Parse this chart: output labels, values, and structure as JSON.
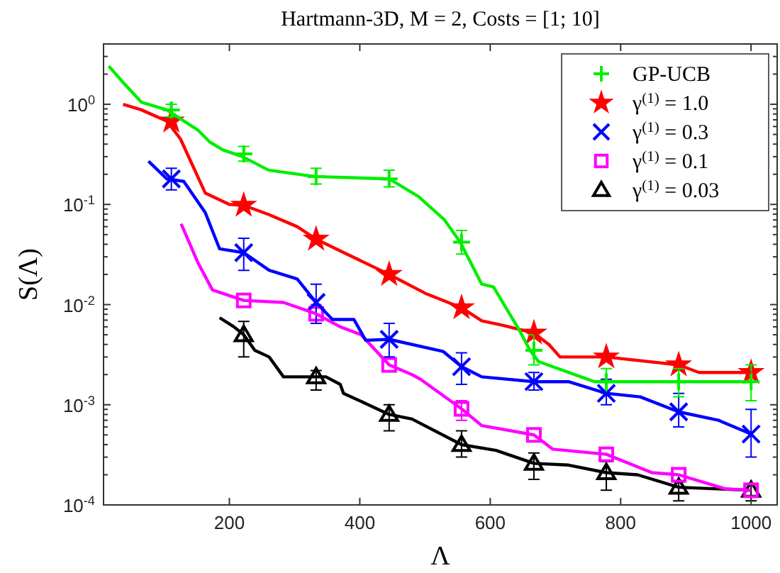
{
  "chart_data": {
    "type": "line",
    "title": "Hartmann-3D,  M = 2,  Costs = [1; 10]",
    "xlabel": "Λ",
    "ylabel": "S(Λ)",
    "log": "y",
    "grid": false,
    "legend": "top right",
    "line_style": "solid",
    "xlim": [
      7,
      1040
    ],
    "xticks": [
      200,
      400,
      600,
      800,
      1000
    ],
    "ylim": [
      0.0001,
      4
    ],
    "yticks": [
      {
        "value": 0.0001,
        "label": "10$^{-4}$"
      },
      {
        "value": 0.0002,
        "label": null
      },
      {
        "value": 0.0003,
        "label": null
      },
      {
        "value": 0.0004,
        "label": null
      },
      {
        "value": 0.0005,
        "label": null
      },
      {
        "value": 0.0006,
        "label": null
      },
      {
        "value": 0.0007,
        "label": null
      },
      {
        "value": 0.0008,
        "label": null
      },
      {
        "value": 0.0009,
        "label": null
      },
      {
        "value": 0.001,
        "label": "10$^{-3}$"
      },
      {
        "value": 0.002,
        "label": null
      },
      {
        "value": 0.003,
        "label": null
      },
      {
        "value": 0.004,
        "label": null
      },
      {
        "value": 0.005,
        "label": null
      },
      {
        "value": 0.006,
        "label": null
      },
      {
        "value": 0.007,
        "label": null
      },
      {
        "value": 0.008,
        "label": null
      },
      {
        "value": 0.009,
        "label": null
      },
      {
        "value": 0.01,
        "label": "10$^{-2}$"
      },
      {
        "value": 0.02,
        "label": null
      },
      {
        "value": 0.03,
        "label": null
      },
      {
        "value": 0.04,
        "label": null
      },
      {
        "value": 0.05,
        "label": null
      },
      {
        "value": 0.06,
        "label": null
      },
      {
        "value": 0.07,
        "label": null
      },
      {
        "value": 0.08,
        "label": null
      },
      {
        "value": 0.09,
        "label": null
      },
      {
        "value": 0.1,
        "label": "10$^{-1}$"
      },
      {
        "value": 0.2,
        "label": null
      },
      {
        "value": 0.3,
        "label": null
      },
      {
        "value": 0.4,
        "label": null
      },
      {
        "value": 0.5,
        "label": null
      },
      {
        "value": 0.6,
        "label": null
      },
      {
        "value": 0.7,
        "label": null
      },
      {
        "value": 0.8,
        "label": null
      },
      {
        "value": 0.9,
        "label": null
      },
      {
        "value": 1,
        "label": "10$^{0}$"
      },
      {
        "value": 2,
        "label": null
      },
      {
        "value": 3,
        "label": null
      }
    ],
    "series": [
      {
        "color": "#00ee00",
        "x": [
          15,
          39,
          65,
          104,
          152,
          170,
          190,
          220,
          260,
          330,
          445,
          490,
          530,
          554,
          587,
          605,
          645,
          661,
          674,
          739,
          760,
          1000
        ],
        "values": [
          2.4,
          1.6,
          1.05,
          0.88,
          0.55,
          0.42,
          0.35,
          0.3,
          0.22,
          0.19,
          0.18,
          0.12,
          0.07,
          0.042,
          0.016,
          0.015,
          0.0055,
          0.0035,
          0.0027,
          0.0019,
          0.0017,
          0.0017
        ]
      },
      {
        "color": "#ff0000",
        "x": [
          37,
          65,
          104,
          125,
          163,
          200,
          222,
          261,
          304,
          333,
          380,
          445,
          500,
          556,
          587,
          620,
          667,
          690,
          707,
          778,
          889,
          920,
          1000
        ],
        "values": [
          1.0,
          0.88,
          0.68,
          0.45,
          0.13,
          0.1,
          0.098,
          0.079,
          0.06,
          0.045,
          0.032,
          0.02,
          0.013,
          0.0093,
          0.0069,
          0.0062,
          0.0052,
          0.004,
          0.003,
          0.003,
          0.0025,
          0.0021,
          0.0021
        ]
      },
      {
        "color": "#0000ff",
        "x": [
          76,
          104,
          130,
          163,
          185,
          222,
          261,
          304,
          333,
          358,
          391,
          409,
          445,
          528,
          556,
          587,
          667,
          720,
          778,
          830,
          889,
          950,
          1000
        ],
        "values": [
          0.27,
          0.18,
          0.17,
          0.083,
          0.036,
          0.033,
          0.022,
          0.018,
          0.0105,
          0.0071,
          0.0071,
          0.0044,
          0.0045,
          0.0034,
          0.0024,
          0.0019,
          0.0017,
          0.0017,
          0.0013,
          0.0012,
          0.00085,
          0.0007,
          0.00051
        ]
      },
      {
        "color": "#ff00ff",
        "x": [
          126,
          152,
          174,
          222,
          283,
          333,
          370,
          402,
          445,
          480,
          493,
          556,
          587,
          667,
          696,
          778,
          848,
          889,
          960,
          1000
        ],
        "values": [
          0.064,
          0.026,
          0.014,
          0.011,
          0.0105,
          0.0081,
          0.006,
          0.005,
          0.0025,
          0.002,
          0.0018,
          0.00091,
          0.00062,
          0.0005,
          0.00036,
          0.00032,
          0.00021,
          0.0002,
          0.000145,
          0.00014
        ]
      },
      {
        "color": "#000000",
        "x": [
          185,
          207,
          222,
          239,
          261,
          283,
          333,
          348,
          370,
          375,
          413,
          445,
          480,
          556,
          609,
          667,
          720,
          778,
          826,
          889,
          1000
        ],
        "values": [
          0.0074,
          0.006,
          0.005,
          0.0035,
          0.003,
          0.0019,
          0.0019,
          0.0019,
          0.0016,
          0.0013,
          0.001,
          0.0008,
          0.00072,
          0.0004,
          0.00035,
          0.00026,
          0.00025,
          0.00021,
          0.0002,
          0.00015,
          0.00014
        ]
      },
      {
        "type": "scatter",
        "name": "GP-UCB",
        "color": "#00ee00",
        "marker": "plus",
        "x": [
          111,
          222,
          333,
          445,
          556,
          667,
          778,
          889,
          1000
        ],
        "values": [
          0.88,
          0.32,
          0.19,
          0.18,
          0.042,
          0.0035,
          0.0017,
          0.0017,
          0.0017
        ],
        "errors": [
          [
            0.75,
            1.0
          ],
          [
            0.27,
            0.38
          ],
          [
            0.16,
            0.23
          ],
          [
            0.15,
            0.22
          ],
          [
            0.032,
            0.055
          ],
          [
            0.0025,
            0.005
          ],
          [
            0.0013,
            0.0023
          ],
          [
            0.0012,
            0.0023
          ],
          [
            0.0011,
            0.0025
          ]
        ]
      },
      {
        "type": "scatter",
        "name": "γ$^{(1)}$ = 1.0",
        "color": "#ff0000",
        "marker": "star",
        "x": [
          111,
          222,
          333,
          445,
          556,
          667,
          778,
          889,
          1000
        ],
        "values": [
          0.68,
          0.098,
          0.045,
          0.02,
          0.0093,
          0.0052,
          0.003,
          0.0025,
          0.0021
        ]
      },
      {
        "type": "scatter",
        "name": "γ$^{(1)}$ = 0.3",
        "color": "#0000ff",
        "marker": "x",
        "x": [
          111,
          222,
          333,
          445,
          556,
          667,
          778,
          889,
          1000
        ],
        "values": [
          0.18,
          0.033,
          0.0105,
          0.0045,
          0.0024,
          0.0017,
          0.0013,
          0.00085,
          0.00051
        ],
        "errors": [
          [
            0.14,
            0.23
          ],
          [
            0.022,
            0.046
          ],
          [
            0.0065,
            0.016
          ],
          [
            0.003,
            0.0065
          ],
          [
            0.0016,
            0.0033
          ],
          [
            0.0014,
            0.0021
          ],
          [
            0.001,
            0.0018
          ],
          [
            0.0006,
            0.0013
          ],
          [
            0.0003,
            0.0009
          ]
        ]
      },
      {
        "type": "scatter",
        "name": "γ$^{(1)}$ = 0.1",
        "color": "#ff00ff",
        "marker": "square",
        "x": [
          222,
          333,
          445,
          556,
          667,
          778,
          889,
          1000
        ],
        "values": [
          0.011,
          0.0081,
          0.0025,
          0.00091,
          0.0005,
          0.00032,
          0.0002,
          0.00014
        ],
        "errors": [
          null,
          [
            0.0065,
            0.01
          ],
          null,
          [
            0.0007,
            0.0011
          ],
          null,
          null,
          null,
          null
        ]
      },
      {
        "type": "scatter",
        "name": "γ$^{(1)}$ = 0.03",
        "color": "#000000",
        "marker": "triangle",
        "x": [
          222,
          333,
          445,
          556,
          667,
          778,
          889,
          1000
        ],
        "values": [
          0.005,
          0.0019,
          0.0008,
          0.0004,
          0.00026,
          0.00021,
          0.00015,
          0.00014
        ],
        "errors": [
          [
            0.003,
            0.0068
          ],
          [
            0.0014,
            0.0022
          ],
          [
            0.00055,
            0.001
          ],
          [
            0.0003,
            0.00055
          ],
          [
            0.00018,
            0.00033
          ],
          [
            0.00014,
            0.00027
          ],
          [
            0.00011,
            0.00017
          ],
          [
            0.00011,
            0.00016
          ]
        ]
      }
    ]
  }
}
